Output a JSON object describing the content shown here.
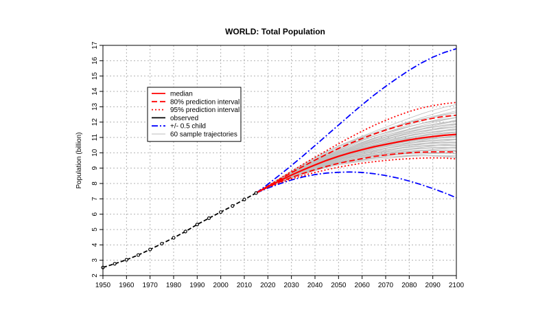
{
  "chart_data": {
    "type": "line",
    "title": "WORLD: Total Population",
    "xlabel": "",
    "ylabel": "Population (billion)",
    "xlim": [
      1950,
      2100
    ],
    "ylim": [
      2,
      17
    ],
    "x_ticks": [
      "1950",
      "1960",
      "1970",
      "1980",
      "1990",
      "2000",
      "2010",
      "2020",
      "2030",
      "2040",
      "2050",
      "2060",
      "2070",
      "2080",
      "2090",
      "2100"
    ],
    "y_ticks": [
      "2",
      "3",
      "4",
      "5",
      "6",
      "7",
      "8",
      "9",
      "10",
      "11",
      "12",
      "13",
      "14",
      "15",
      "16",
      "17"
    ],
    "grid": true,
    "legend_position": "top-left",
    "legend": [
      {
        "label": "median",
        "color": "#ff0000",
        "style": "solid"
      },
      {
        "label": "80% prediction interval",
        "color": "#ff0000",
        "style": "dashed"
      },
      {
        "label": "95% prediction interval",
        "color": "#ff0000",
        "style": "dotted"
      },
      {
        "label": "observed",
        "color": "#000000",
        "style": "solid"
      },
      {
        "label": "+/- 0.5 child",
        "color": "#0000ff",
        "style": "dashdot"
      },
      {
        "label": "60 sample trajectories",
        "color": "#bebebe",
        "style": "solid"
      }
    ],
    "observed": {
      "x": [
        1950,
        1955,
        1960,
        1965,
        1970,
        1975,
        1980,
        1985,
        1990,
        1995,
        2000,
        2005,
        2010,
        2015
      ],
      "y": [
        2.53,
        2.77,
        3.03,
        3.34,
        3.7,
        4.08,
        4.46,
        4.87,
        5.33,
        5.74,
        6.14,
        6.54,
        6.96,
        7.38
      ]
    },
    "projection_x": [
      2015,
      2020,
      2025,
      2030,
      2035,
      2040,
      2045,
      2050,
      2055,
      2060,
      2065,
      2070,
      2075,
      2080,
      2085,
      2090,
      2095,
      2100
    ],
    "series": [
      {
        "name": "median",
        "values": [
          7.38,
          7.8,
          8.18,
          8.55,
          8.89,
          9.21,
          9.51,
          9.77,
          10.0,
          10.2,
          10.39,
          10.55,
          10.7,
          10.84,
          10.96,
          11.06,
          11.14,
          11.2
        ]
      },
      {
        "name": "80% prediction interval",
        "bound": "upper",
        "values": [
          7.38,
          7.82,
          8.26,
          8.7,
          9.12,
          9.52,
          9.91,
          10.28,
          10.62,
          10.93,
          11.22,
          11.48,
          11.71,
          11.92,
          12.1,
          12.25,
          12.37,
          12.45
        ]
      },
      {
        "name": "80% prediction interval",
        "bound": "lower",
        "values": [
          7.38,
          7.77,
          8.1,
          8.39,
          8.66,
          8.9,
          9.12,
          9.31,
          9.47,
          9.62,
          9.76,
          9.86,
          9.94,
          10.0,
          10.04,
          10.06,
          10.06,
          10.05
        ]
      },
      {
        "name": "95% prediction interval",
        "bound": "upper",
        "values": [
          7.38,
          7.84,
          8.31,
          8.79,
          9.26,
          9.71,
          10.15,
          10.59,
          11.01,
          11.41,
          11.78,
          12.12,
          12.42,
          12.69,
          12.91,
          13.07,
          13.2,
          13.28
        ]
      },
      {
        "name": "95% prediction interval",
        "bound": "lower",
        "values": [
          7.38,
          7.75,
          8.05,
          8.3,
          8.52,
          8.72,
          8.9,
          9.06,
          9.2,
          9.32,
          9.42,
          9.5,
          9.57,
          9.62,
          9.65,
          9.67,
          9.66,
          9.6
        ]
      },
      {
        "name": "+/- 0.5 child",
        "bound": "upper",
        "values": [
          7.38,
          7.95,
          8.55,
          9.17,
          9.81,
          10.47,
          11.14,
          11.81,
          12.48,
          13.13,
          13.75,
          14.33,
          14.87,
          15.38,
          15.84,
          16.23,
          16.54,
          16.78
        ]
      },
      {
        "name": "+/- 0.5 child",
        "bound": "lower",
        "values": [
          7.38,
          7.7,
          7.98,
          8.23,
          8.43,
          8.58,
          8.68,
          8.73,
          8.75,
          8.72,
          8.64,
          8.52,
          8.36,
          8.16,
          7.93,
          7.67,
          7.39,
          7.07
        ]
      }
    ],
    "sample_trajectories": {
      "count": 60,
      "final_values": [
        9.7,
        9.75,
        9.82,
        9.88,
        9.93,
        10.0,
        10.05,
        10.1,
        10.15,
        10.2,
        10.24,
        10.3,
        10.34,
        10.4,
        10.45,
        10.5,
        10.54,
        10.6,
        10.65,
        10.7,
        10.74,
        10.8,
        10.85,
        10.9,
        10.94,
        11.0,
        11.04,
        11.08,
        11.12,
        11.16,
        11.2,
        11.24,
        11.28,
        11.32,
        11.36,
        11.4,
        11.45,
        11.5,
        11.55,
        11.6,
        11.65,
        11.7,
        11.75,
        11.8,
        11.85,
        11.9,
        11.95,
        12.0,
        12.05,
        12.1,
        12.15,
        12.22,
        12.3,
        12.38,
        12.45,
        12.55,
        12.65,
        12.78,
        12.9,
        13.1
      ]
    },
    "colors": {
      "median": "#ff0000",
      "interval": "#ff0000",
      "observed": "#000000",
      "half_child": "#0000ff",
      "trajectories": "#bebebe",
      "grid": "#b0b0b0"
    }
  }
}
